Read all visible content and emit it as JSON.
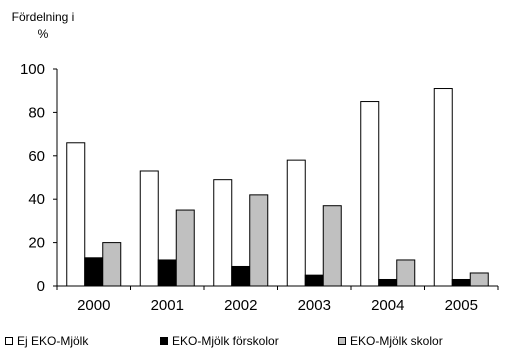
{
  "chart_data": {
    "type": "bar",
    "title": "",
    "ylabel": "Fördelning i %",
    "xlabel": "",
    "categories": [
      "2000",
      "2001",
      "2002",
      "2003",
      "2004",
      "2005"
    ],
    "ylim": [
      0,
      100
    ],
    "yticks": [
      "0",
      "20",
      "40",
      "60",
      "80",
      "100"
    ],
    "grid": false,
    "legend_position": "bottom",
    "series": [
      {
        "name": "Ej EKO-Mjölk",
        "color": "#ffffff",
        "values": [
          66,
          53,
          49,
          58,
          85,
          91
        ]
      },
      {
        "name": "EKO-Mjölk förskolor",
        "color": "#000000",
        "values": [
          13,
          12,
          9,
          5,
          3,
          3
        ]
      },
      {
        "name": "EKO-Mjölk skolor",
        "color": "#c0c0c0",
        "values": [
          20,
          35,
          42,
          37,
          12,
          6
        ]
      }
    ]
  }
}
